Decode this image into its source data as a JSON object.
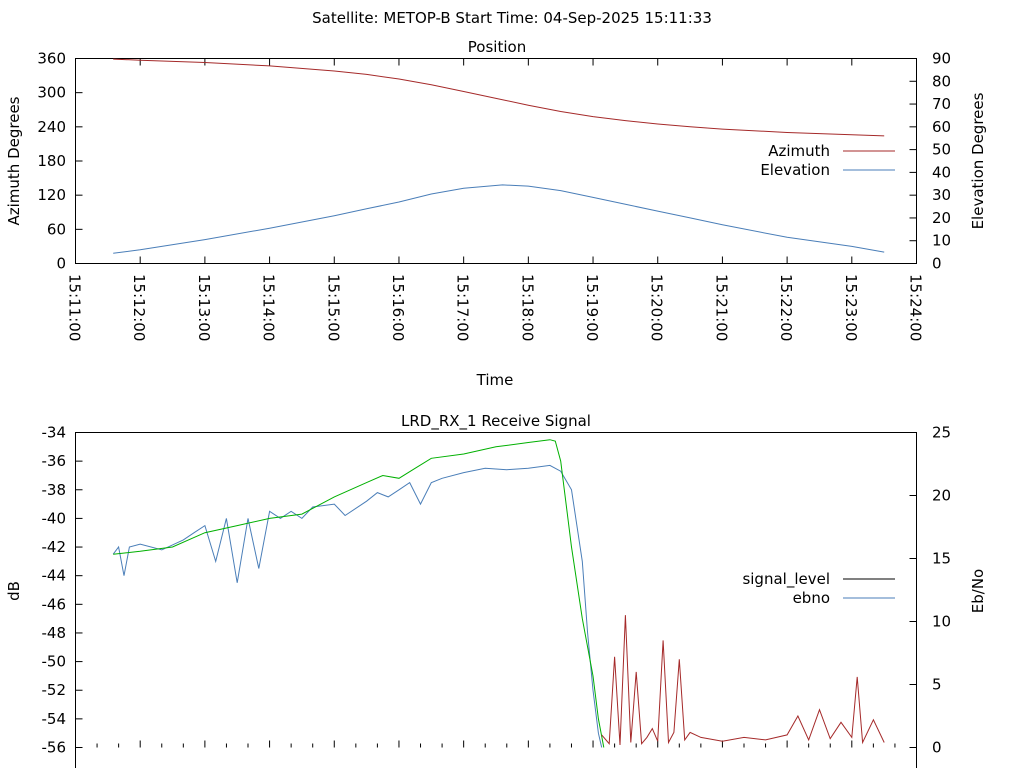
{
  "suptitle": "Satellite: METOP-B    Start Time: 04-Sep-2025 15:11:33",
  "chart_data": [
    {
      "type": "line",
      "title": "Position",
      "xlabel": "Time",
      "ylabel": "Azimuth Degrees",
      "y2label": "Elevation Degrees",
      "xlim": [
        "15:11:00",
        "15:24:00"
      ],
      "ylim": [
        0,
        360
      ],
      "y2lim": [
        0,
        90
      ],
      "xticks": [
        "15:11:00",
        "15:12:00",
        "15:13:00",
        "15:14:00",
        "15:15:00",
        "15:16:00",
        "15:17:00",
        "15:18:00",
        "15:19:00",
        "15:20:00",
        "15:21:00",
        "15:22:00",
        "15:23:00",
        "15:24:00"
      ],
      "yticks": [
        "0",
        "60",
        "120",
        "180",
        "240",
        "300",
        "360"
      ],
      "y2ticks": [
        "0",
        "10",
        "20",
        "30",
        "40",
        "50",
        "60",
        "70",
        "80",
        "90"
      ],
      "legend_position": "right",
      "series": [
        {
          "name": "Azimuth",
          "axis": "y",
          "color": "#a52a2a",
          "x": [
            "15:11:35",
            "15:12:00",
            "15:13:00",
            "15:14:00",
            "15:15:00",
            "15:15:30",
            "15:16:00",
            "15:16:30",
            "15:17:00",
            "15:17:30",
            "15:18:00",
            "15:18:30",
            "15:19:00",
            "15:19:30",
            "15:20:00",
            "15:20:30",
            "15:21:00",
            "15:22:00",
            "15:23:00",
            "15:23:30"
          ],
          "values": [
            359,
            357,
            353,
            347,
            338,
            332,
            324,
            314,
            302,
            290,
            278,
            267,
            258,
            251,
            245,
            240,
            236,
            230,
            226,
            224
          ]
        },
        {
          "name": "Elevation",
          "axis": "y2",
          "color": "#4a7eb8",
          "x": [
            "15:11:35",
            "15:12:00",
            "15:13:00",
            "15:14:00",
            "15:15:00",
            "15:15:30",
            "15:16:00",
            "15:16:30",
            "15:17:00",
            "15:17:36",
            "15:18:00",
            "15:18:30",
            "15:19:00",
            "15:19:30",
            "15:20:00",
            "15:20:30",
            "15:21:00",
            "15:22:00",
            "15:23:00",
            "15:23:30"
          ],
          "values": [
            4.5,
            6,
            10.5,
            15.5,
            21,
            24,
            27,
            30.5,
            33,
            34.5,
            34,
            32,
            29,
            26,
            23,
            20,
            17,
            11.5,
            7.5,
            5
          ]
        }
      ]
    },
    {
      "type": "line",
      "title": "LRD_RX_1 Receive Signal",
      "ylabel": "dB",
      "y2label": "Eb/No",
      "ylim": [
        -56,
        -34
      ],
      "y2lim": [
        0,
        25
      ],
      "yticks": [
        "-34",
        "-36",
        "-38",
        "-40",
        "-42",
        "-44",
        "-46",
        "-48",
        "-50",
        "-52",
        "-54",
        "-56"
      ],
      "y2ticks": [
        "0",
        "5",
        "10",
        "15",
        "20",
        "25"
      ],
      "legend_position": "right",
      "legend": [
        {
          "name": "signal_level",
          "color": "#000000"
        },
        {
          "name": "ebno",
          "color": "#4a7eb8"
        }
      ],
      "series": [
        {
          "name": "ebno-trace",
          "axis": "y",
          "color": "#4a7eb8",
          "x": [
            "15:11:35",
            "15:11:40",
            "15:11:45",
            "15:11:50",
            "15:12:00",
            "15:12:20",
            "15:12:40",
            "15:12:50",
            "15:13:00",
            "15:13:10",
            "15:13:20",
            "15:13:30",
            "15:13:40",
            "15:13:50",
            "15:14:00",
            "15:14:10",
            "15:14:20",
            "15:14:30",
            "15:14:40",
            "15:15:00",
            "15:15:10",
            "15:15:30",
            "15:15:40",
            "15:15:50",
            "15:16:00",
            "15:16:10",
            "15:16:20",
            "15:16:30",
            "15:16:40",
            "15:17:00",
            "15:17:20",
            "15:17:40",
            "15:18:00",
            "15:18:20",
            "15:18:30",
            "15:18:40",
            "15:18:50",
            "15:18:55",
            "15:19:00",
            "15:19:05",
            "15:19:08"
          ],
          "values": [
            -42.5,
            -42,
            -44,
            -42,
            -41.8,
            -42.2,
            -41.5,
            -41,
            -40.5,
            -43,
            -40,
            -44.5,
            -40,
            -43.5,
            -39.5,
            -40,
            -39.5,
            -40,
            -39.2,
            -39,
            -39.8,
            -38.8,
            -38.2,
            -38.5,
            -38,
            -37.5,
            -39,
            -37.5,
            -37.2,
            -36.8,
            -36.5,
            -36.6,
            -36.5,
            -36.3,
            -36.7,
            -38,
            -43,
            -48,
            -52,
            -55,
            -56
          ]
        },
        {
          "name": "signal-trace",
          "axis": "y",
          "color": "#00b000",
          "x": [
            "15:11:35",
            "15:12:00",
            "15:12:30",
            "15:13:00",
            "15:13:30",
            "15:14:00",
            "15:14:30",
            "15:15:00",
            "15:15:30",
            "15:15:45",
            "15:16:00",
            "15:16:15",
            "15:16:30",
            "15:17:00",
            "15:17:30",
            "15:18:00",
            "15:18:20",
            "15:18:25",
            "15:18:30",
            "15:18:40",
            "15:18:50",
            "15:19:00",
            "15:19:05",
            "15:19:10"
          ],
          "values": [
            -42.5,
            -42.3,
            -42,
            -41,
            -40.5,
            -40,
            -39.7,
            -38.5,
            -37.5,
            -37,
            -37.2,
            -36.5,
            -35.8,
            -35.5,
            -35,
            -34.7,
            -34.5,
            -34.6,
            -36,
            -42,
            -47,
            -51,
            -54,
            -56
          ]
        },
        {
          "name": "eb-no-trace",
          "axis": "y2",
          "color": "#a52a2a",
          "x": [
            "15:19:08",
            "15:19:15",
            "15:19:20",
            "15:19:25",
            "15:19:30",
            "15:19:35",
            "15:19:40",
            "15:19:45",
            "15:19:50",
            "15:19:55",
            "15:20:00",
            "15:20:05",
            "15:20:10",
            "15:20:15",
            "15:20:20",
            "15:20:25",
            "15:20:30",
            "15:20:40",
            "15:21:00",
            "15:21:20",
            "15:21:40",
            "15:22:00",
            "15:22:10",
            "15:22:20",
            "15:22:30",
            "15:22:40",
            "15:22:50",
            "15:23:00",
            "15:23:05",
            "15:23:10",
            "15:23:20",
            "15:23:30"
          ],
          "values": [
            1,
            0.3,
            7.2,
            0.2,
            10.5,
            0.4,
            6,
            0.3,
            0.8,
            1.5,
            0.5,
            8.5,
            0.4,
            1.2,
            7,
            0.6,
            1.2,
            0.8,
            0.5,
            0.8,
            0.6,
            1,
            2.5,
            0.6,
            3,
            0.7,
            2,
            0.8,
            5.6,
            0.4,
            2.2,
            0.4
          ]
        }
      ]
    }
  ]
}
